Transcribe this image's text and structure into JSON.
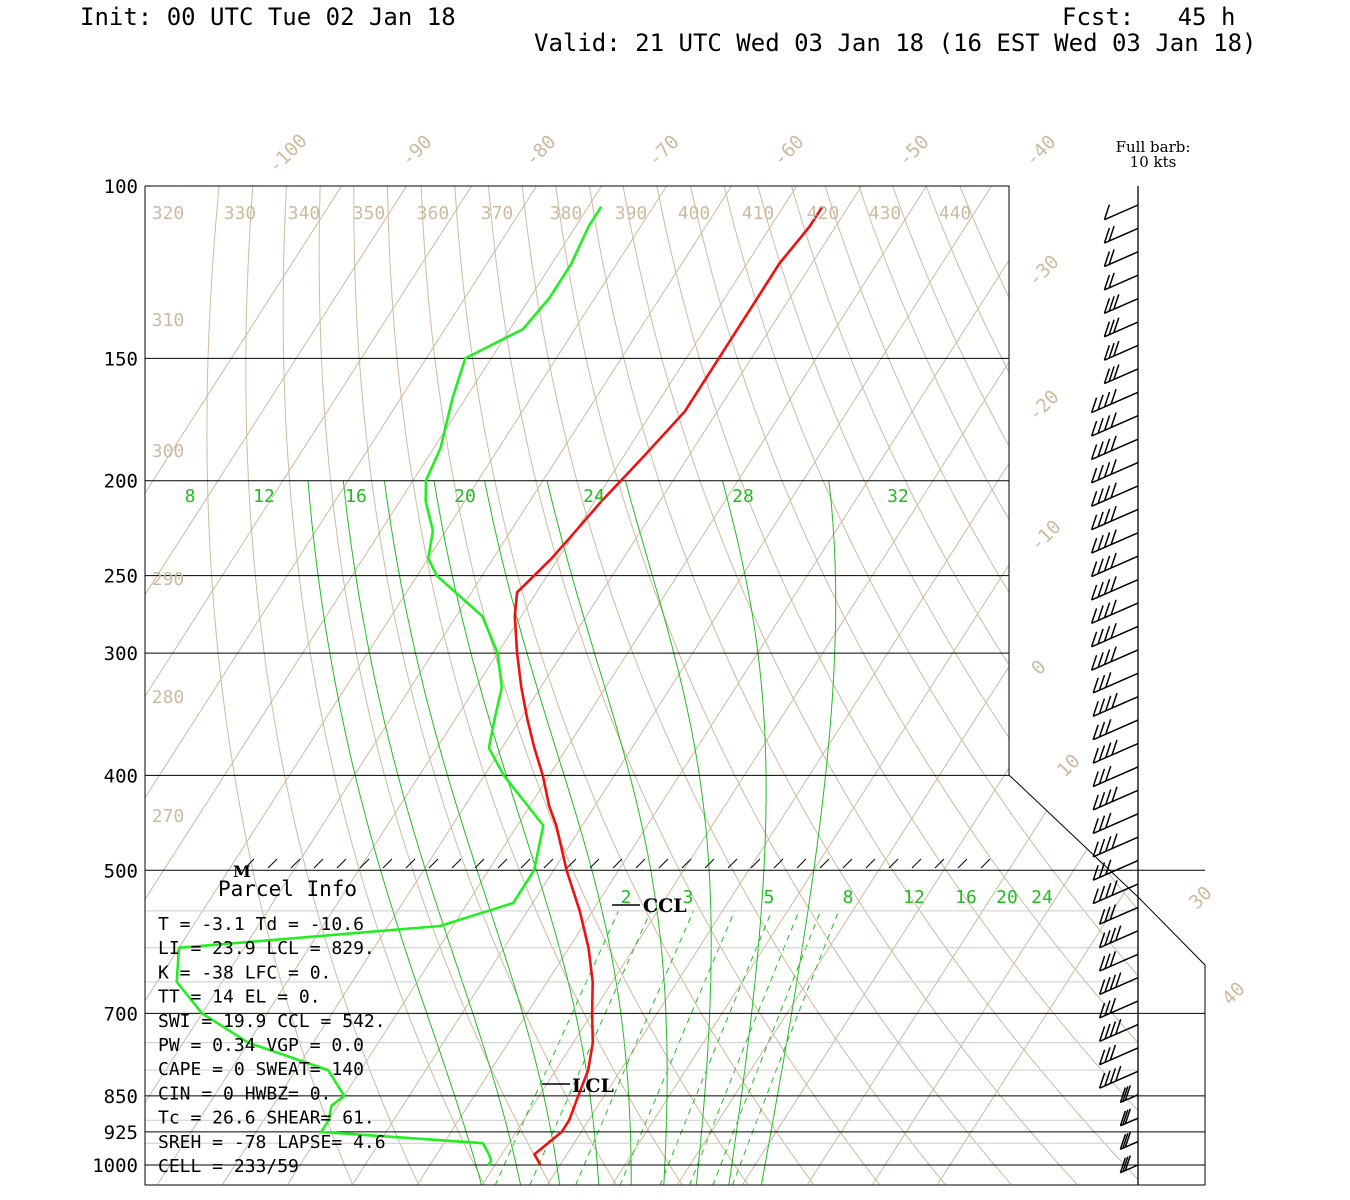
{
  "header": {
    "init": "Init: 00 UTC Tue 02 Jan 18",
    "fcst": "Fcst:   45 h",
    "valid": "Valid: 21 UTC Wed 03 Jan 18 (16 EST Wed 03 Jan 18)"
  },
  "colors": {
    "temperature": "#ee1111",
    "dewpoint": "#22ee22",
    "isotherm": "#cdbb9f",
    "mixing_ratio": "#22bb22",
    "isobar": "#000000"
  },
  "legend": {
    "full_barb_line1": "Full barb:",
    "full_barb_line2": "10 kts"
  },
  "markers": {
    "ccl": "CCL",
    "lcl": "LCL",
    "m": "M"
  },
  "parcel": {
    "title": "Parcel Info",
    "rows": [
      "T  =    -3.1 Td = -10.6",
      "LI =    23.9 LCL =  829.",
      "K  =     -38 LFC =    0.",
      "TT =      14 EL  =    0.",
      "SWI =   19.9 CCL =  542.",
      "PW =    0.34 VGP =   0.0",
      "CAPE =     0 SWEAT=  140",
      "CIN =      0 HWBZ=    0.",
      "Tc =    26.6 SHEAR=  61.",
      "SREH =   -78 LAPSE=  4.6",
      "CELL = 233/59"
    ]
  },
  "chart_data": {
    "type": "line",
    "title": "",
    "xlabel": "",
    "ylabel": "",
    "pressure_labels": [
      "100",
      "150",
      "200",
      "250",
      "300",
      "400",
      "500",
      "700",
      "850",
      "925",
      "1000"
    ],
    "isotherm_labels": [
      "-100",
      "-90",
      "-80",
      "-70",
      "-60",
      "-50",
      "-40",
      "-30",
      "-20",
      "-10",
      "0",
      "10",
      "30",
      "40"
    ],
    "theta_labels": [
      "320",
      "330",
      "340",
      "350",
      "360",
      "370",
      "380",
      "390",
      "400",
      "410",
      "420",
      "430",
      "440",
      "310",
      "300",
      "290",
      "280",
      "270"
    ],
    "mixing_ratio_labels_upper": [
      "8",
      "12",
      "16",
      "20",
      "24",
      "28",
      "32"
    ],
    "mixing_ratio_labels_lower": [
      "2",
      "3",
      "5",
      "8",
      "12",
      "16",
      "20",
      "24"
    ],
    "series": [
      {
        "name": "Temperature",
        "pressure": [
          1000,
          975,
          950,
          925,
          900,
          850,
          800,
          750,
          700,
          650,
          600,
          550,
          500,
          450,
          430,
          400,
          375,
          350,
          325,
          300,
          275,
          260,
          250,
          240,
          225,
          210,
          200,
          190,
          170,
          160,
          150,
          140,
          130,
          120,
          110,
          105
        ],
        "temperature_c": [
          -3,
          -5,
          -4,
          -3,
          -3,
          -4,
          -5,
          -7,
          -10,
          -13,
          -17,
          -22,
          -28,
          -34,
          -37,
          -41,
          -45,
          -49,
          -53,
          -57,
          -61,
          -63,
          -62,
          -61,
          -60,
          -59,
          -58,
          -57,
          -55,
          -55,
          -55,
          -55,
          -55,
          -55,
          -54,
          -54
        ]
      },
      {
        "name": "Dewpoint",
        "pressure": [
          1000,
          990,
          975,
          950,
          925,
          900,
          870,
          850,
          800,
          750,
          700,
          650,
          600,
          570,
          540,
          500,
          450,
          400,
          375,
          350,
          325,
          300,
          275,
          250,
          240,
          225,
          210,
          200,
          185,
          165,
          150,
          140,
          130,
          120,
          110,
          105
        ],
        "dewpoint_c": [
          -11,
          -11,
          -12,
          -14,
          -40,
          -40,
          -41,
          -40,
          -45,
          -60,
          -70,
          -77,
          -80,
          -42,
          -33,
          -33,
          -36,
          -47,
          -52,
          -54,
          -56,
          -60,
          -66,
          -77,
          -80,
          -82,
          -86,
          -88,
          -89,
          -92,
          -94,
          -88,
          -87,
          -87,
          -88,
          -88
        ]
      }
    ],
    "wind_barbs_count": 42
  }
}
